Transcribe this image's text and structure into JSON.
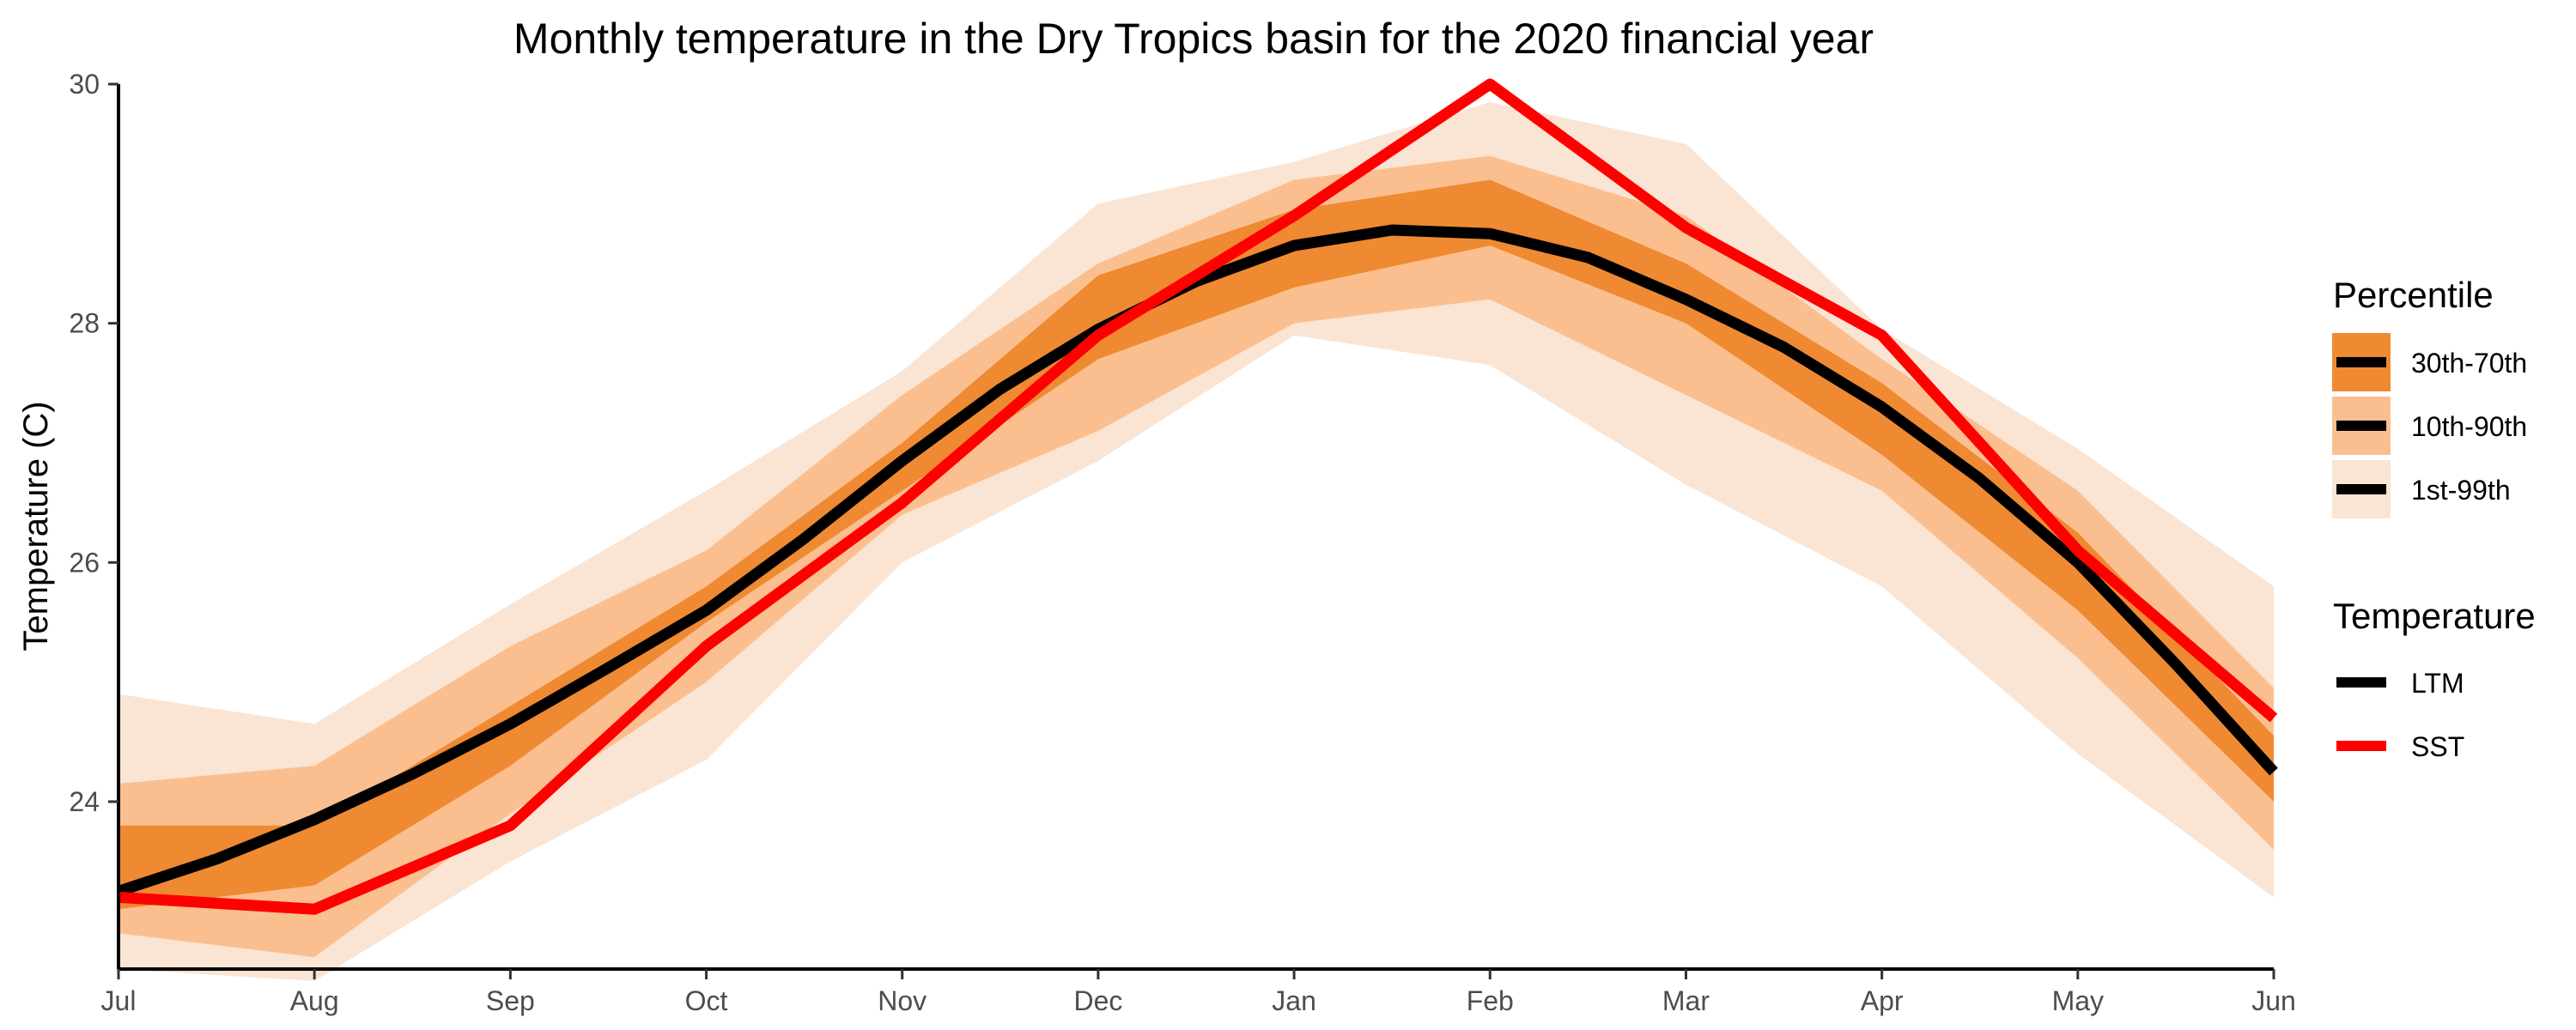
{
  "chart_data": {
    "type": "area",
    "title": "Monthly temperature in the Dry Tropics basin for the 2020 financial year",
    "xlabel": "",
    "ylabel": "Temperature (C)",
    "categories": [
      "Jul",
      "Aug",
      "Sep",
      "Oct",
      "Nov",
      "Dec",
      "Jan",
      "Feb",
      "Mar",
      "Apr",
      "May",
      "Jun"
    ],
    "ylim": [
      22.6,
      30.0
    ],
    "yticks": [
      24,
      26,
      28,
      30
    ],
    "grid": false,
    "legend_position": "right",
    "bands": [
      {
        "name": "1st-99th",
        "color": "#fae4d3",
        "low": [
          22.6,
          22.5,
          23.5,
          24.35,
          26.0,
          26.85,
          27.9,
          27.65,
          26.65,
          25.8,
          24.4,
          23.2
        ],
        "high": [
          24.9,
          24.65,
          25.65,
          26.6,
          27.6,
          29.0,
          29.35,
          29.85,
          29.5,
          27.95,
          26.95,
          25.8
        ]
      },
      {
        "name": "10th-90th",
        "color": "#fbbf8f",
        "low": [
          22.9,
          22.7,
          23.9,
          25.0,
          26.4,
          27.1,
          28.0,
          28.2,
          27.4,
          26.6,
          25.2,
          23.6
        ],
        "high": [
          24.15,
          24.3,
          25.3,
          26.1,
          27.4,
          28.5,
          29.2,
          29.4,
          28.9,
          27.7,
          26.6,
          24.95
        ]
      },
      {
        "name": "30th-70th",
        "color": "#ef8a32",
        "low": [
          23.1,
          23.3,
          24.3,
          25.5,
          26.6,
          27.7,
          28.3,
          28.65,
          28.0,
          26.9,
          25.6,
          24.0
        ],
        "high": [
          23.8,
          23.8,
          24.8,
          25.8,
          27.0,
          28.4,
          28.95,
          29.2,
          28.5,
          27.5,
          26.25,
          24.55
        ]
      }
    ],
    "series": [
      {
        "name": "LTM",
        "color": "#000000",
        "x": [
          0,
          0.5,
          1,
          1.5,
          2,
          2.5,
          3,
          3.5,
          4,
          4.5,
          5,
          5.5,
          6,
          6.5,
          7,
          7.5,
          8,
          8.5,
          9,
          9.5,
          10,
          10.5,
          11
        ],
        "y": [
          23.25,
          23.52,
          23.85,
          24.23,
          24.65,
          25.12,
          25.6,
          26.2,
          26.85,
          27.45,
          27.95,
          28.35,
          28.65,
          28.78,
          28.75,
          28.55,
          28.2,
          27.8,
          27.3,
          26.7,
          26.0,
          25.15,
          24.25
        ]
      },
      {
        "name": "SST",
        "color": "#ff0000",
        "x": [
          0,
          1,
          2,
          3,
          4,
          5,
          6,
          7,
          8,
          9,
          10,
          11
        ],
        "y": [
          23.2,
          23.1,
          23.8,
          25.3,
          26.5,
          27.9,
          28.9,
          30.0,
          28.8,
          27.9,
          26.1,
          24.7
        ]
      }
    ],
    "legend": {
      "percentile_title": "Percentile",
      "percentile_items": [
        "30th-70th",
        "10th-90th",
        "1st-99th"
      ],
      "temperature_title": "Temperature",
      "temperature_items": [
        "LTM",
        "SST"
      ]
    }
  }
}
